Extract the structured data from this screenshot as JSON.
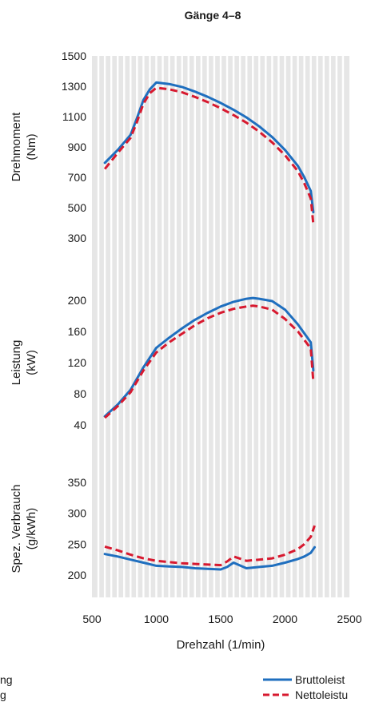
{
  "chart_data": {
    "type": "line",
    "title": "Gänge 4–8",
    "xlabel": "Drehzahl (1/min)",
    "xlim": [
      500,
      2500
    ],
    "x_ticks": [
      500,
      1000,
      1500,
      2000,
      2500
    ],
    "grid": true,
    "colors": {
      "grid_bg": "#e6e6e6",
      "gridline": "#ffffff",
      "brutto": "#1f6fbf",
      "netto": "#d7192f"
    },
    "legend": {
      "placement": "bottom-right",
      "entries": [
        {
          "label": "Bruttoleist",
          "color": "#1f6fbf",
          "style": "solid"
        },
        {
          "label": "Nettoleistu",
          "color": "#d7192f",
          "style": "dashed"
        }
      ],
      "left_fragments": [
        "ng",
        "g"
      ]
    },
    "panels": [
      {
        "ylabel": [
          "Drehmoment",
          "(Nm)"
        ],
        "ylim": [
          300,
          1500
        ],
        "y_ticks": [
          300,
          500,
          700,
          900,
          1100,
          1300,
          1500
        ],
        "series": [
          {
            "key": "brutto",
            "x": [
              600,
              700,
              800,
              850,
              900,
              950,
              1000,
              1100,
              1200,
              1300,
              1400,
              1500,
              1600,
              1700,
              1800,
              1900,
              2000,
              2100,
              2150,
              2200,
              2220
            ],
            "y": [
              795,
              880,
              980,
              1090,
              1210,
              1280,
              1325,
              1315,
              1295,
              1265,
              1230,
              1190,
              1145,
              1095,
              1035,
              965,
              880,
              775,
              700,
              610,
              470
            ]
          },
          {
            "key": "netto",
            "x": [
              600,
              700,
              800,
              850,
              900,
              950,
              1000,
              1100,
              1200,
              1300,
              1400,
              1500,
              1600,
              1700,
              1800,
              1900,
              2000,
              2100,
              2150,
              2200,
              2220
            ],
            "y": [
              755,
              860,
              960,
              1065,
              1185,
              1255,
              1290,
              1280,
              1260,
              1230,
              1195,
              1155,
              1110,
              1060,
              1000,
              930,
              845,
              740,
              660,
              560,
              390
            ]
          }
        ]
      },
      {
        "ylabel": [
          "Leistung",
          "(kW)"
        ],
        "ylim": [
          40,
          200
        ],
        "y_ticks": [
          40,
          80,
          120,
          160,
          200
        ],
        "series": [
          {
            "key": "brutto",
            "x": [
              600,
              700,
              800,
              900,
              1000,
              1100,
              1200,
              1300,
              1400,
              1500,
              1600,
              1700,
              1750,
              1800,
              1900,
              2000,
              2100,
              2200,
              2220
            ],
            "y": [
              51,
              66,
              85,
              114,
              139,
              152,
              164,
              175,
              184,
              192,
              198,
              202,
              203,
              202,
              199,
              188,
              169,
              146,
              110
            ]
          },
          {
            "key": "netto",
            "x": [
              600,
              700,
              800,
              900,
              1000,
              1100,
              1200,
              1300,
              1400,
              1500,
              1600,
              1700,
              1750,
              1800,
              1900,
              2000,
              2100,
              2200,
              2220
            ],
            "y": [
              49,
              64,
              82,
              110,
              133,
              146,
              157,
              168,
              177,
              184,
              189,
              192,
              193,
              192,
              188,
              176,
              160,
              138,
              95
            ]
          }
        ]
      },
      {
        "ylabel": [
          "Spez. Verbrauch",
          "(g/kWh)"
        ],
        "ylim": [
          200,
          350
        ],
        "y_ticks": [
          200,
          250,
          300,
          350
        ],
        "series": [
          {
            "key": "brutto",
            "x": [
              600,
              700,
              800,
              900,
              1000,
              1100,
              1200,
              1300,
              1400,
              1500,
              1550,
              1600,
              1700,
              1800,
              1900,
              2000,
              2100,
              2150,
              2200,
              2230
            ],
            "y": [
              234,
              230,
              225,
              220,
              215,
              214,
              213,
              211,
              210,
              209,
              213,
              220,
              211,
              213,
              215,
              220,
              226,
              230,
              236,
              245
            ]
          },
          {
            "key": "netto",
            "x": [
              600,
              700,
              800,
              900,
              1000,
              1100,
              1200,
              1300,
              1400,
              1500,
              1550,
              1600,
              1700,
              1800,
              1900,
              2000,
              2100,
              2150,
              2200,
              2230
            ],
            "y": [
              246,
              240,
              233,
              227,
              223,
              221,
              219,
              218,
              217,
              216,
              222,
              230,
              223,
              225,
              227,
              233,
              242,
              250,
              262,
              280
            ]
          }
        ]
      }
    ]
  }
}
